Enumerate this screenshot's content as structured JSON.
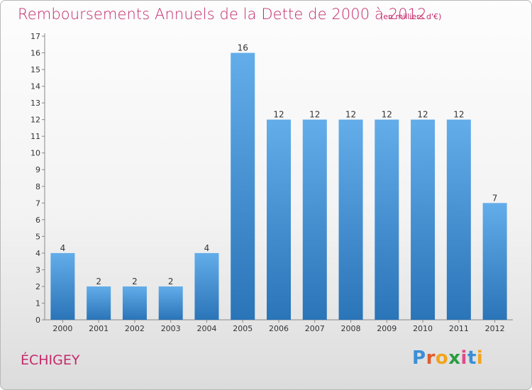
{
  "title": "Remboursements Annuels de la Dette de 2000 à 2012",
  "subtitle": "(en milliers d'€)",
  "town": "ÉCHIGEY",
  "logo": {
    "text": "Proxiti",
    "letters": [
      "P",
      "r",
      "o",
      "x",
      "i",
      "t",
      "i"
    ],
    "colors": [
      "#3a8fd8",
      "#e25a2a",
      "#f2a51b",
      "#2a9d43",
      "#e04a8a",
      "#3a8fd8",
      "#f2a51b"
    ]
  },
  "colors": {
    "bar": "#3d8fd9",
    "bar_light": "#63adea",
    "bar_dark": "#2a74b8",
    "title": "#c4296b"
  },
  "chart_data": {
    "type": "bar",
    "categories": [
      "2000",
      "2001",
      "2002",
      "2003",
      "2004",
      "2005",
      "2006",
      "2007",
      "2008",
      "2009",
      "2010",
      "2011",
      "2012"
    ],
    "values": [
      4,
      2,
      2,
      2,
      4,
      16,
      12,
      12,
      12,
      12,
      12,
      12,
      7
    ],
    "ylim": [
      0,
      17
    ],
    "yticks": [
      0,
      1,
      2,
      3,
      4,
      5,
      6,
      7,
      8,
      9,
      10,
      11,
      12,
      13,
      14,
      15,
      16,
      17
    ],
    "grid": false
  }
}
